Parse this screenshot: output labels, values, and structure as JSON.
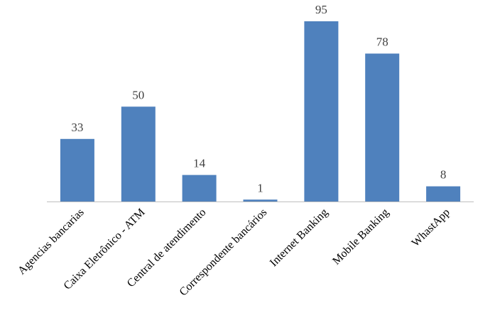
{
  "chart_data": {
    "type": "bar",
    "categories": [
      "Agencias bancarias",
      "Caixa Eletrônico - ATM",
      "Central de atendimento",
      "Correspondente bancários",
      "Internet Banking",
      "Mobile Banking",
      "WhastApp"
    ],
    "values": [
      33,
      50,
      14,
      1,
      95,
      78,
      8
    ],
    "data_labels": [
      "33",
      "50",
      "14",
      "1",
      "95",
      "78",
      "8"
    ],
    "ylim": [
      0,
      95
    ],
    "grid": false,
    "legend": "none",
    "bar_color": "#4f81bd"
  }
}
